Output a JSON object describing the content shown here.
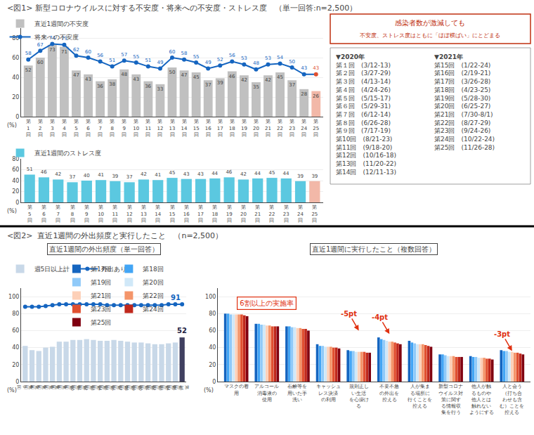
{
  "chart_data": [
    {
      "type": "bar",
      "title": "<図1> 新型コロナウイルスに対する不安度・将来への不安度・ストレス度　（単一回答:n=2,500）",
      "categories": [
        "第\n1\n回",
        "第\n2\n回",
        "第\n3\n回",
        "第\n4\n回",
        "第\n5\n回",
        "第\n6\n回",
        "第\n7\n回",
        "第\n8\n回",
        "第\n9\n回",
        "第\n10\n回",
        "第\n11\n回",
        "第\n12\n回",
        "第\n13\n回",
        "第\n14\n回",
        "第\n15\n回",
        "第\n16\n回",
        "第\n17\n回",
        "第\n18\n回",
        "第\n19\n回",
        "第\n20\n回",
        "第\n21\n回",
        "第\n22\n回",
        "第\n23\n回",
        "第\n24\n回",
        "第\n25\n回"
      ],
      "series": [
        {
          "name": "直近1週間の不安度",
          "type": "bar",
          "colors": [
            "#c0c0c0",
            "#c0c0c0",
            "#c0c0c0",
            "#c0c0c0",
            "#c0c0c0",
            "#c0c0c0",
            "#c0c0c0",
            "#c0c0c0",
            "#c0c0c0",
            "#c0c0c0",
            "#c0c0c0",
            "#c0c0c0",
            "#c0c0c0",
            "#c0c0c0",
            "#c0c0c0",
            "#c0c0c0",
            "#c0c0c0",
            "#c0c0c0",
            "#c0c0c0",
            "#c0c0c0",
            "#c0c0c0",
            "#c0c0c0",
            "#c0c0c0",
            "#c0c0c0",
            "#f2b8a8"
          ],
          "values": [
            52,
            60,
            73,
            71,
            47,
            43,
            36,
            38,
            48,
            43,
            36,
            33,
            50,
            47,
            45,
            37,
            39,
            46,
            42,
            35,
            42,
            45,
            37,
            28,
            26
          ]
        },
        {
          "name": "将来への不安度",
          "type": "line",
          "color": "#1565c0",
          "marker": "circle",
          "colors": [
            "#1565c0",
            "#1565c0",
            "#1565c0",
            "#1565c0",
            "#1565c0",
            "#1565c0",
            "#1565c0",
            "#1565c0",
            "#1565c0",
            "#1565c0",
            "#1565c0",
            "#1565c0",
            "#1565c0",
            "#1565c0",
            "#1565c0",
            "#1565c0",
            "#1565c0",
            "#1565c0",
            "#1565c0",
            "#1565c0",
            "#1565c0",
            "#1565c0",
            "#1565c0",
            "#1565c0",
            "#e05030"
          ],
          "values": [
            58,
            67,
            74,
            73,
            62,
            60,
            56,
            51,
            57,
            55,
            51,
            49,
            60,
            58,
            55,
            49,
            52,
            56,
            53,
            48,
            53,
            54,
            50,
            43,
            43
          ]
        }
      ],
      "ylim": [
        0,
        90
      ],
      "yticks": [
        0,
        20,
        40,
        60,
        80
      ],
      "ylabel": "(%)",
      "grid": true,
      "data_labels": true,
      "legend": "top",
      "annotations": [
        {
          "text": "感染者数が激減しても",
          "color": "#c03010"
        },
        {
          "text": "不安度、ストレス度はともに「ほぼ横ばい」にとどまる",
          "color": "#c03010"
        },
        {
          "text": "▼2020年\n第１回　(3/12-13)\n第２回　(3/27-29)\n第３回　(4/13-14)\n第４回　(4/24-26)\n第５回　(5/15-17)\n第６回　(5/29-31)\n第７回　(6/12-14)\n第８回　(6/26-28)\n第９回　(7/17-19)\n第10回　(8/21-23)\n第11回　(9/18-20)\n第12回　(10/16-18)\n第13回　(11/20-22)\n第14回　(12/11-13)"
        },
        {
          "text": "▼2021年\n第15回　(1/22-24)\n第16回　(2/19-21)\n第17回　(3/26-28)\n第18回　(4/23-25)\n第19回　(5/28-30)\n第20回　(6/25-27)\n第21回　(7/30-8/1)\n第22回　(8/27-29)\n第23回　(9/24-26)\n第24回　(10/22-24)\n第25回　(11/26-28)"
        }
      ]
    },
    {
      "type": "bar",
      "categories": [
        "第\n5\n回",
        "第\n6\n回",
        "第\n7\n回",
        "第\n8\n回",
        "第\n9\n回",
        "第\n10\n回",
        "第\n11\n回",
        "第\n12\n回",
        "第\n13\n回",
        "第\n14\n回",
        "第\n15\n回",
        "第\n16\n回",
        "第\n17\n回",
        "第\n18\n回",
        "第\n19\n回",
        "第\n20\n回",
        "第\n21\n回",
        "第\n22\n回",
        "第\n23\n回",
        "第\n24\n回",
        "第\n25\n回"
      ],
      "series": [
        {
          "name": "直近1週間のストレス度",
          "type": "bar",
          "colors": [
            "#5bc8e0",
            "#5bc8e0",
            "#5bc8e0",
            "#5bc8e0",
            "#5bc8e0",
            "#5bc8e0",
            "#5bc8e0",
            "#5bc8e0",
            "#5bc8e0",
            "#5bc8e0",
            "#5bc8e0",
            "#5bc8e0",
            "#5bc8e0",
            "#5bc8e0",
            "#5bc8e0",
            "#5bc8e0",
            "#5bc8e0",
            "#5bc8e0",
            "#5bc8e0",
            "#5bc8e0",
            "#f2b8a8"
          ],
          "values": [
            51,
            46,
            42,
            37,
            40,
            41,
            39,
            37,
            42,
            41,
            45,
            43,
            43,
            44,
            46,
            42,
            44,
            45,
            44,
            39,
            39
          ]
        }
      ],
      "ylim": [
        0,
        80
      ],
      "yticks": [
        0,
        20,
        40,
        60,
        80
      ],
      "ylabel": "(%)",
      "grid": true,
      "data_labels": true,
      "legend": "top"
    },
    {
      "type": "bar",
      "title": "<図2>  直近1週間の外出頻度と実行したこと　（n=2,500）",
      "subtitle": "直近1週間の外出頻度（単一回答）",
      "categories": [
        "第\n3\n回",
        "第\n4\n回",
        "第\n5\n回",
        "第\n6\n回",
        "第\n7\n回",
        "第\n8\n回",
        "第\n9\n回",
        "第\n10\n回",
        "第\n11\n回",
        "第\n12\n回",
        "第\n13\n回",
        "第\n14\n回",
        "第\n15\n回",
        "第\n16\n回",
        "第\n17\n回",
        "第\n18\n回",
        "第\n19\n回",
        "第\n20\n回",
        "第\n21\n回",
        "第\n22\n回",
        "第\n23\n回",
        "第\n24\n回",
        "第\n25\n回",
        "第\n25\n回"
      ],
      "series": [
        {
          "name": "週5日以上計",
          "type": "bar",
          "colors": [
            "#c8d8e8",
            "#c8d8e8",
            "#c8d8e8",
            "#c8d8e8",
            "#c8d8e8",
            "#c8d8e8",
            "#c8d8e8",
            "#c8d8e8",
            "#c8d8e8",
            "#c8d8e8",
            "#c8d8e8",
            "#c8d8e8",
            "#c8d8e8",
            "#c8d8e8",
            "#c8d8e8",
            "#c8d8e8",
            "#c8d8e8",
            "#c8d8e8",
            "#c8d8e8",
            "#c8d8e8",
            "#c8d8e8",
            "#c8d8e8",
            "#c8d8e8",
            "#404060"
          ],
          "values": [
            42,
            37,
            36,
            40,
            41,
            47,
            47,
            49,
            49,
            50,
            49,
            48,
            48,
            49,
            48,
            47,
            46,
            46,
            45,
            44,
            44,
            45,
            46,
            52
          ]
        },
        {
          "name": "外出あり計",
          "type": "line",
          "color": "#1565c0",
          "marker": "circle",
          "values": [
            88,
            88,
            88,
            89,
            90,
            91,
            91,
            91,
            91,
            91,
            91,
            91,
            90,
            90,
            90,
            90,
            90,
            90,
            90,
            90,
            90,
            91,
            91,
            91
          ]
        }
      ],
      "ylim": [
        0,
        110
      ],
      "yticks": [
        0,
        20,
        40,
        60,
        80,
        100
      ],
      "ylabel": "(%)",
      "grid": true,
      "legend": "top",
      "annotations": [
        {
          "text": "52",
          "x": 23,
          "y": 52,
          "color": "#202040"
        },
        {
          "text": "91",
          "x": 23,
          "y": 91,
          "color": "#1565c0"
        }
      ]
    },
    {
      "type": "bar",
      "title": "直近1週間に実行したこと（複数回答）",
      "categories": [
        "マスクの着\n用",
        "アルコール\n消毒液の\n使用",
        "石鹸等を\n用いた手\n洗い",
        "キャッシュ\nレス決済\nの利用",
        "規則正し\nい生活\nを心掛け\nる",
        "不要不急\nの外出を\n控える",
        "人が集ま\nる場所に\n行くことを\n控える",
        "新型コロナ\nウイルス対\n策に関す\nる情報収\n集を行う",
        "他人が触\nるものや\n他人とは\n触れない\nようにする",
        "人と会う\n（打ち合\nわせも含\nむ）ことを\n控える"
      ],
      "series": [
        {
          "name": "第17回",
          "color": "#1565c0",
          "values": [
            80,
            68,
            65,
            44,
            37,
            52,
            48,
            32,
            30,
            37
          ]
        },
        {
          "name": "第18回",
          "color": "#42a5f5",
          "values": [
            80,
            68,
            65,
            42,
            36,
            50,
            46,
            32,
            29,
            36
          ]
        },
        {
          "name": "第19回",
          "color": "#90caf9",
          "values": [
            79,
            67,
            64,
            42,
            36,
            49,
            45,
            31,
            29,
            36
          ]
        },
        {
          "name": "第20回",
          "color": "#d0e8f8",
          "values": [
            79,
            67,
            64,
            41,
            35,
            48,
            44,
            30,
            28,
            35
          ]
        },
        {
          "name": "第21回",
          "color": "#fdd0b8",
          "values": [
            79,
            66,
            63,
            41,
            35,
            47,
            44,
            30,
            28,
            35
          ]
        },
        {
          "name": "第22回",
          "color": "#f4956a",
          "values": [
            79,
            66,
            63,
            41,
            35,
            47,
            44,
            30,
            28,
            34
          ]
        },
        {
          "name": "第23回",
          "color": "#e05030",
          "values": [
            79,
            65,
            62,
            40,
            35,
            46,
            43,
            29,
            27,
            34
          ]
        },
        {
          "name": "第24回",
          "color": "#c0281c",
          "values": [
            78,
            65,
            62,
            40,
            34,
            45,
            42,
            29,
            27,
            33
          ]
        },
        {
          "name": "第25回",
          "color": "#800010",
          "values": [
            77,
            65,
            60,
            39,
            34,
            44,
            41,
            29,
            26,
            32
          ]
        }
      ],
      "ylim": [
        0,
        110
      ],
      "yticks": [
        0,
        20,
        40,
        60,
        80,
        100
      ],
      "ylabel": "(%)",
      "grid": true,
      "legend": "top",
      "annotations": [
        {
          "text": "6割以上の実施率",
          "x": 1,
          "y": 84,
          "color": "#e03010"
        },
        {
          "text": "-5pt",
          "x": 4,
          "y": 60,
          "color": "#e03010"
        },
        {
          "text": "-4pt",
          "x": 5,
          "y": 56,
          "color": "#e03010"
        },
        {
          "text": "-3pt",
          "x": 9,
          "y": 36,
          "color": "#e03010"
        }
      ]
    }
  ]
}
